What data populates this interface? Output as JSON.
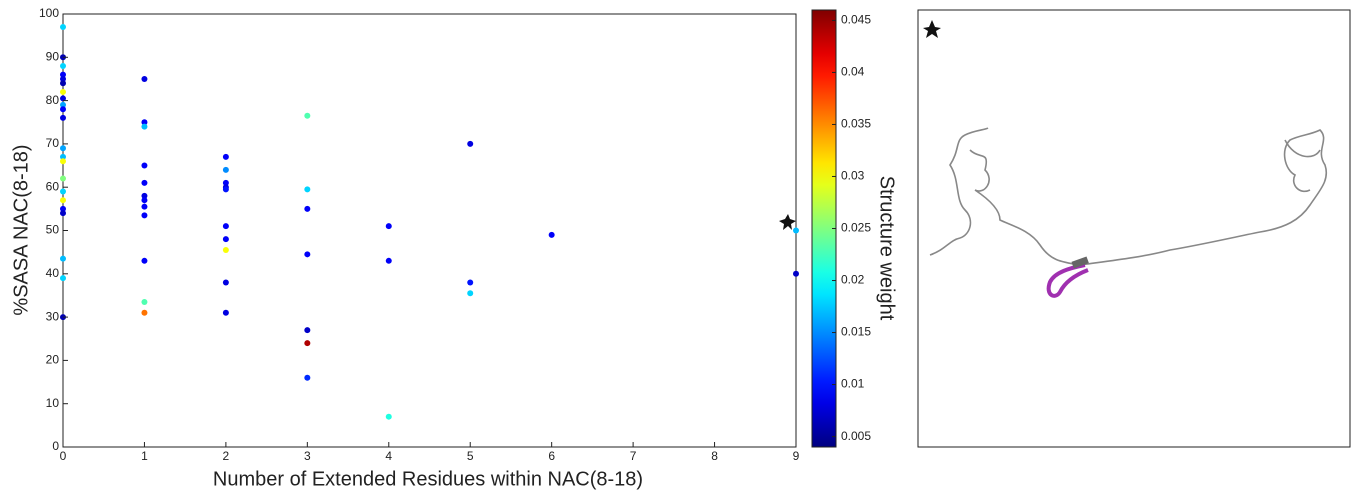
{
  "chart_data": {
    "type": "scatter",
    "xlabel": "Number of Extended Residues within NAC(8-18)",
    "ylabel": "%SASA NAC(8-18)",
    "colorbar_label": "Structure weight",
    "colormap": "jet",
    "x": [
      0,
      0,
      0,
      0,
      0,
      0,
      0,
      0,
      0,
      0,
      0,
      0,
      0,
      0,
      0,
      0,
      0,
      0,
      0,
      0,
      0,
      0,
      1,
      1,
      1,
      1,
      1,
      1,
      1,
      1,
      1,
      1,
      1,
      1,
      2,
      2,
      2,
      2,
      2,
      2,
      2,
      2,
      2,
      2,
      3,
      3,
      3,
      3,
      3,
      3,
      3,
      4,
      4,
      4,
      5,
      5,
      5,
      6,
      9,
      9
    ],
    "y": [
      97,
      90,
      88,
      86,
      85,
      84,
      82,
      80.5,
      79,
      78,
      76,
      69,
      67,
      66,
      62,
      59,
      57,
      55,
      54,
      43.5,
      39,
      30,
      85,
      75,
      74,
      65,
      61,
      58,
      57,
      55.5,
      53.5,
      43,
      33.5,
      31,
      67,
      64,
      61,
      60,
      59.5,
      51,
      48,
      45.5,
      38,
      31,
      76.5,
      59.5,
      55,
      44.5,
      27,
      24,
      16,
      51,
      43,
      7,
      70,
      38,
      35.5,
      49,
      50,
      40
    ],
    "weights": [
      0.018,
      0.006,
      0.018,
      0.009,
      0.008,
      0.006,
      0.03,
      0.008,
      0.016,
      0.009,
      0.008,
      0.016,
      0.017,
      0.03,
      0.025,
      0.018,
      0.03,
      0.009,
      0.007,
      0.017,
      0.018,
      0.006,
      0.008,
      0.009,
      0.017,
      0.009,
      0.009,
      0.008,
      0.009,
      0.009,
      0.009,
      0.009,
      0.023,
      0.036,
      0.009,
      0.015,
      0.009,
      0.008,
      0.01,
      0.009,
      0.009,
      0.03,
      0.008,
      0.008,
      0.023,
      0.018,
      0.009,
      0.009,
      0.007,
      0.044,
      0.011,
      0.009,
      0.009,
      0.021,
      0.008,
      0.01,
      0.018,
      0.009,
      0.017,
      0.007
    ],
    "xlim": [
      0,
      9
    ],
    "xticks": [
      0,
      1,
      2,
      3,
      4,
      5,
      6,
      7,
      8,
      9
    ],
    "ylim": [
      0,
      100
    ],
    "yticks": [
      0,
      10,
      20,
      30,
      40,
      50,
      60,
      70,
      80,
      90,
      100
    ],
    "clim": [
      0.004,
      0.046
    ],
    "cticks": [
      0.005,
      0.01,
      0.015,
      0.02,
      0.025,
      0.03,
      0.035,
      0.04,
      0.045
    ]
  }
}
